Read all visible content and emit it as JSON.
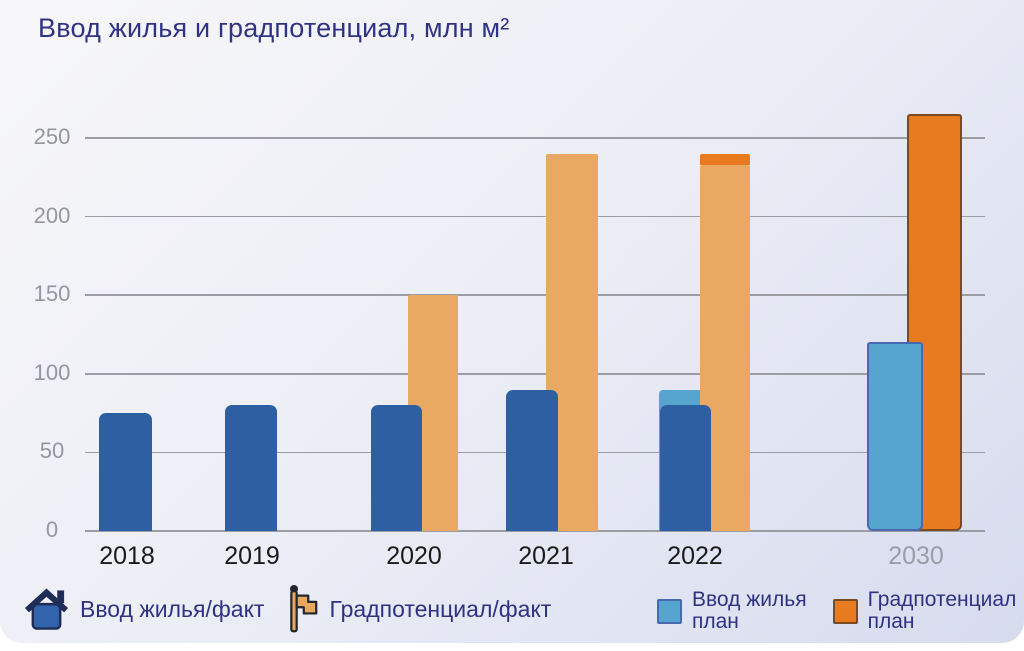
{
  "title": "Ввод жилья и градпотенциал, млн м²",
  "chart_data": {
    "type": "bar",
    "title": "Ввод жилья и градпотенциал, млн м²",
    "categories": [
      "2018",
      "2019",
      "2020",
      "2021",
      "2022",
      "2030"
    ],
    "y_ticks": [
      0,
      50,
      100,
      150,
      200,
      250
    ],
    "ylim": [
      0,
      270
    ],
    "grid": true,
    "legend_position": "bottom",
    "future_category": "2030",
    "series": [
      {
        "name": "Ввод жилья/факт",
        "color": "#2e5fa3",
        "values": [
          75,
          80,
          80,
          90,
          80,
          null
        ]
      },
      {
        "name": "Градпотенциал/факт",
        "color": "#e9a962",
        "values": [
          null,
          null,
          150,
          240,
          233,
          null
        ]
      },
      {
        "name": "Ввод жилья план",
        "color": "#55a5cf",
        "border_color": "#4868b0",
        "values": [
          null,
          null,
          null,
          null,
          90,
          120
        ]
      },
      {
        "name": "Градпотенциал план",
        "color": "#e87a1f",
        "border_color": "#7a4a20",
        "values": [
          null,
          null,
          null,
          null,
          240,
          265
        ]
      }
    ],
    "colors": {
      "title_text": "#303384",
      "x_label": "#1a1a1a",
      "x_label_future": "#9b9ca8",
      "y_tick_label": "#94959f",
      "gridline": "#9b9ca4"
    }
  },
  "legend": {
    "fact_items": [
      {
        "icon": "house-icon",
        "label": "Ввод жилья/факт"
      },
      {
        "icon": "flag-icon",
        "label": "Градпотенциал/факт"
      }
    ],
    "plan_items": [
      {
        "swatch_color": "#55a5cf",
        "line1": "Ввод жилья",
        "line2": "план"
      },
      {
        "swatch_color": "#e87a1f",
        "line1": "Градпотенциал",
        "line2": "план"
      }
    ]
  }
}
